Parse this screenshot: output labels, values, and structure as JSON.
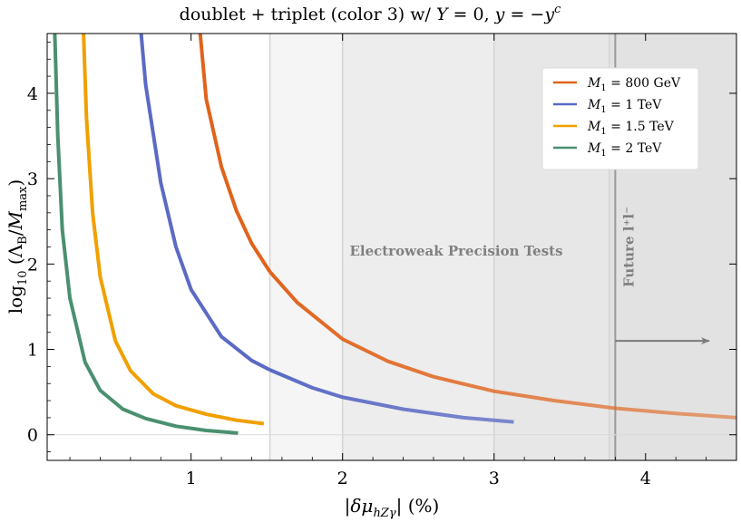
{
  "chart_data": {
    "type": "line",
    "title": "doublet + triplet (color 3) w/ Y = 0,  y = −y^c",
    "xlabel": "|δμ_hZγ| (%)",
    "ylabel": "log10(Λ_B/M_max)",
    "xlim": [
      0.05,
      4.6
    ],
    "ylim": [
      -0.3,
      4.7
    ],
    "x_ticks": [
      "1",
      "2",
      "3",
      "4"
    ],
    "y_ticks": [
      "0",
      "1",
      "2",
      "3",
      "4"
    ],
    "grid": false,
    "legend_position": "top-right",
    "regions": [
      {
        "x_start": 1.52,
        "x_end": 4.6,
        "color": "#f5f5f5"
      },
      {
        "x_start": 2.0,
        "x_end": 4.6,
        "color": "#ededed"
      },
      {
        "x_start": 3.0,
        "x_end": 4.6,
        "color": "#e7e7e7"
      },
      {
        "x_start": 3.76,
        "x_end": 4.6,
        "color": "#e2e2e2"
      }
    ],
    "region_lines": [
      1.52,
      2.0,
      3.0,
      3.76,
      3.8
    ],
    "annotations": [
      {
        "text": "Electroweak Precision Tests",
        "x": 2.75,
        "y": 2.1
      },
      {
        "text": "Future l⁺l⁻",
        "x": 3.85,
        "y": 2.2
      }
    ],
    "arrow": {
      "x_start": 3.8,
      "x_end": 4.42,
      "y": 1.1
    },
    "series": [
      {
        "name": "M1 = 800 GeV",
        "color": "#e0631c",
        "x": [
          1.06,
          1.1,
          1.2,
          1.3,
          1.4,
          1.52,
          1.7,
          2.0,
          2.3,
          2.6,
          3.0,
          3.4,
          3.8,
          4.2,
          4.6
        ],
        "y": [
          4.7,
          3.93,
          3.14,
          2.62,
          2.24,
          1.91,
          1.55,
          1.12,
          0.86,
          0.68,
          0.51,
          0.4,
          0.31,
          0.25,
          0.2
        ]
      },
      {
        "name": "M1 = 1 TeV",
        "color": "#5b6ac4",
        "x": [
          0.67,
          0.7,
          0.8,
          0.9,
          1.0,
          1.2,
          1.4,
          1.52,
          1.8,
          2.0,
          2.4,
          2.8,
          3.13
        ],
        "y": [
          4.7,
          4.1,
          2.95,
          2.2,
          1.7,
          1.15,
          0.87,
          0.76,
          0.55,
          0.44,
          0.3,
          0.2,
          0.15
        ]
      },
      {
        "name": "M1 = 1.5 TeV",
        "color": "#f0a000",
        "x": [
          0.29,
          0.31,
          0.35,
          0.4,
          0.5,
          0.6,
          0.75,
          0.9,
          1.1,
          1.3,
          1.48
        ],
        "y": [
          4.7,
          3.7,
          2.6,
          1.85,
          1.1,
          0.75,
          0.48,
          0.34,
          0.24,
          0.17,
          0.13
        ]
      },
      {
        "name": "M1 = 2 TeV",
        "color": "#4a9070",
        "x": [
          0.1,
          0.12,
          0.15,
          0.2,
          0.3,
          0.4,
          0.55,
          0.7,
          0.9,
          1.1,
          1.31
        ],
        "y": [
          4.7,
          3.5,
          2.4,
          1.6,
          0.85,
          0.52,
          0.3,
          0.19,
          0.1,
          0.05,
          0.02
        ]
      }
    ]
  }
}
